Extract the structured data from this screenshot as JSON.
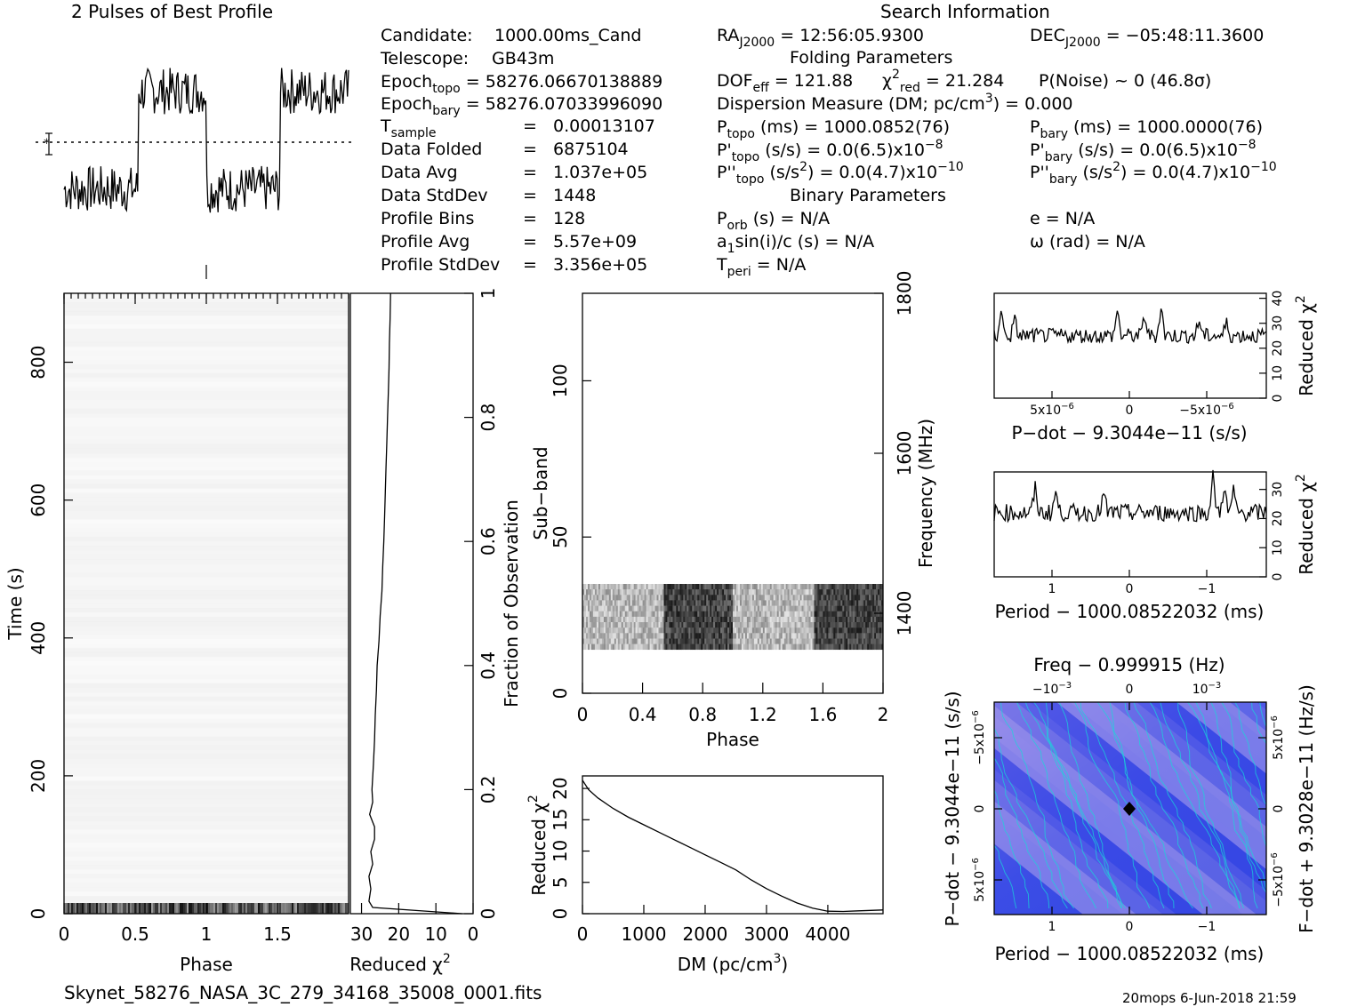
{
  "footer": {
    "filename": "Skynet_58276_NASA_3C_279_34168_35008_0001.fits",
    "stamp": "20mops   6-Jun-2018 21:59"
  },
  "profile": {
    "title": "2 Pulses of Best Profile"
  },
  "search_title": "Search Information",
  "info": {
    "candidate_label": "Candidate:",
    "candidate_value": "1000.00ms_Cand",
    "telescope_label": "Telescope:",
    "telescope_value": "GB43m",
    "epoch_topo": "Epoch",
    "epoch_topo_sub": "topo",
    "epoch_topo_value": " = 58276.06670138889",
    "epoch_bary": "Epoch",
    "epoch_bary_sub": "bary",
    "epoch_bary_value": " = 58276.07033996090",
    "tsample": "T",
    "tsample_sub": "sample",
    "tsample_value": "0.00013107",
    "data_folded_label": "Data Folded",
    "data_folded_value": "6875104",
    "data_avg_label": "Data Avg",
    "data_avg_value": "1.037e+05",
    "data_std_label": "Data StdDev",
    "data_std_value": "1448",
    "prof_bins_label": "Profile Bins",
    "prof_bins_value": "128",
    "prof_avg_label": "Profile Avg",
    "prof_avg_value": "5.57e+09",
    "prof_std_label": "Profile StdDev",
    "prof_std_value": "3.356e+05",
    "eq": "="
  },
  "search": {
    "ra": "RA",
    "ra_sub": "J2000",
    "ra_value": " = 12:56:05.9300",
    "dec": "DEC",
    "dec_sub": "J2000",
    "dec_value": " = −05:48:11.3600",
    "folding_title": "Folding Parameters",
    "dof": "DOF",
    "dof_sub": "eff",
    "dof_value": " = 121.88",
    "chi": "χ",
    "chi_sup": "2",
    "chi_sub": "red",
    "chi_value": " = 21.284",
    "pnoise": "P(Noise) ~ 0    (46.8σ)",
    "dm_line": "Dispersion Measure (DM; pc/cm",
    "dm_sup": "3",
    "dm_value": ") = 0.000",
    "ptopo": "P",
    "ptopo_sub": "topo",
    "ptopo_value": " (ms) =  1000.0852(76)",
    "pbary": "P",
    "pbary_sub": "bary",
    "pbary_value": " (ms) =  1000.0000(76)",
    "pdtopo": "P'",
    "pdtopo_sub": "topo",
    "pdtopo_value": " (s/s) = 0.0(6.5)x10",
    "pdtopo_exp": "−8",
    "pdbary": "P'",
    "pdbary_sub": "bary",
    "pdbary_value": " (s/s) = 0.0(6.5)x10",
    "pdbary_exp": "−8",
    "pddtopo": "P''",
    "pddtopo_sub": "topo",
    "pddtopo_value": " (s/s",
    "pddtopo_sup": "2",
    "pddtopo_value2": ") = 0.0(4.7)x10",
    "pddtopo_exp": "−10",
    "pddbary": "P''",
    "pddbary_sub": "bary",
    "pddbary_value": " (s/s",
    "pddbary_sup": "2",
    "pddbary_value2": ") = 0.0(4.7)x10",
    "pddbary_exp": "−10",
    "binary_title": "Binary Parameters",
    "porb": "P",
    "porb_sub": "orb",
    "porb_value": " (s) = N/A",
    "e_line": "e = N/A",
    "a1": "a",
    "a1_sub": "1",
    "a1_value": "sin(i)/c (s) = N/A",
    "omega_line": "ω (rad) = N/A",
    "tperi": "T",
    "tperi_sub": "peri",
    "tperi_value": " = N/A"
  },
  "chart_data": [
    {
      "type": "line",
      "name": "pulse_profile",
      "title": "2 Pulses of Best Profile",
      "x_range": [
        0,
        2
      ],
      "on_pulse_phase": [
        [
          0.52,
          1.0
        ],
        [
          1.52,
          2.0
        ]
      ],
      "off_level": 0.28,
      "on_level": 0.74
    },
    {
      "type": "heatmap",
      "name": "time_phase",
      "xlabel": "Phase",
      "ylabel": "Time (s)",
      "xlim": [
        0,
        2
      ],
      "ylim": [
        0,
        900
      ],
      "x_ticks": [
        "0",
        "0.5",
        "1",
        "1.5"
      ],
      "x_tick_values": [
        0,
        0.5,
        1,
        1.5
      ],
      "y_ticks": [
        "0",
        "200",
        "400",
        "600",
        "800"
      ],
      "y_tick_values": [
        0,
        200,
        400,
        600,
        800
      ]
    },
    {
      "type": "line",
      "name": "time_chi2",
      "xlabel": "Reduced χ",
      "xlabel_sup": "2",
      "y2label": "Fraction of Observation",
      "x_ticks": [
        "30",
        "20",
        "10",
        "0"
      ],
      "x_tick_values": [
        30,
        20,
        10,
        0
      ],
      "y2_ticks": [
        "0",
        "0.2",
        "0.4",
        "0.6",
        "0.8",
        "1"
      ],
      "y2_tick_values": [
        0,
        0.2,
        0.4,
        0.6,
        0.8,
        1
      ],
      "fraction": [
        0,
        0.01,
        0.02,
        0.04,
        0.06,
        0.08,
        0.1,
        0.12,
        0.14,
        0.16,
        0.18,
        0.2,
        0.24,
        0.28,
        0.32,
        0.36,
        0.4,
        0.44,
        0.48,
        0.52,
        0.56,
        0.6,
        0.64,
        0.68,
        0.72,
        0.76,
        0.8,
        0.84,
        0.88,
        0.92,
        0.96,
        1.0
      ],
      "chi2": [
        3,
        27,
        28,
        27.5,
        28,
        27,
        27.5,
        26.5,
        26.5,
        27.8,
        27,
        27.2,
        26.8,
        26.5,
        26.3,
        26,
        25.8,
        25.3,
        25,
        24.5,
        24.3,
        24,
        23.8,
        23.6,
        23.4,
        23.2,
        23,
        22.8,
        22.6,
        22.5,
        22.3,
        22.2
      ],
      "xlim": [
        0,
        33
      ]
    },
    {
      "type": "heatmap",
      "name": "subband_phase",
      "xlabel": "Phase",
      "ylabel": "Sub−band",
      "y2label": "Frequency (MHz)",
      "xlim": [
        0,
        2
      ],
      "ylim": [
        0,
        128
      ],
      "x_ticks": [
        "0",
        "0.4",
        "0.8",
        "1.2",
        "1.6",
        "2"
      ],
      "x_tick_values": [
        0,
        0.4,
        0.8,
        1.2,
        1.6,
        2
      ],
      "y_ticks": [
        "0",
        "50",
        "100"
      ],
      "y_tick_values": [
        0,
        50,
        100
      ],
      "y2_ticks": [
        "1400",
        "1600",
        "1800"
      ],
      "active_subbands": [
        14,
        35
      ]
    },
    {
      "type": "line",
      "name": "dm_chi2",
      "xlabel": "DM (pc/cm",
      "xlabel_sup": "3",
      "ylabel": "Reduced χ",
      "ylabel_sup": "2",
      "xlim": [
        0,
        4900
      ],
      "ylim": [
        0,
        22
      ],
      "x_ticks": [
        "0",
        "1000",
        "2000",
        "3000",
        "4000"
      ],
      "x_tick_values": [
        0,
        1000,
        2000,
        3000,
        4000
      ],
      "y_ticks": [
        "0",
        "5",
        "10",
        "15",
        "20"
      ],
      "y_tick_values": [
        0,
        5,
        10,
        15,
        20
      ],
      "x": [
        0,
        100,
        250,
        500,
        750,
        1000,
        1250,
        1500,
        1750,
        2000,
        2250,
        2500,
        2750,
        3000,
        3250,
        3500,
        3750,
        4000,
        4250,
        4500,
        4900
      ],
      "y": [
        21.3,
        19.8,
        18.5,
        16.8,
        15.4,
        14.2,
        13.0,
        11.8,
        10.6,
        9.4,
        8.2,
        7.0,
        5.4,
        4.0,
        2.8,
        1.7,
        0.9,
        0.4,
        0.35,
        0.45,
        0.6
      ]
    },
    {
      "type": "line",
      "name": "pdot_chi2",
      "xlabel": "P−dot − 9.3044e−11 (s/s)",
      "ylabel": "Reduced χ",
      "ylabel_sup": "2",
      "ylim": [
        0,
        42
      ],
      "x_ticks": [
        "5x10",
        "0",
        "−5x10"
      ],
      "x_tick_exp": "−6",
      "y_ticks": [
        "0",
        "10",
        "20",
        "30",
        "40"
      ],
      "y_tick_values": [
        0,
        10,
        20,
        30,
        40
      ]
    },
    {
      "type": "line",
      "name": "period_chi2",
      "xlabel": "Period − 1000.08522032 (ms)",
      "ylabel": "Reduced χ",
      "ylabel_sup": "2",
      "ylim": [
        0,
        36
      ],
      "x_ticks": [
        "1",
        "0",
        "−1"
      ],
      "y_ticks": [
        "0",
        "10",
        "20",
        "30"
      ],
      "y_tick_values": [
        0,
        10,
        20,
        30
      ]
    },
    {
      "type": "heatmap",
      "name": "period_pdot",
      "title": "Freq − 0.999915 (Hz)",
      "xlabel": "Period − 1000.08522032 (ms)",
      "ylabel": "P−dot − 9.3044e−11 (s/s)",
      "y2label": "F−dot + 9.3028e−11 (Hz/s)",
      "x_ticks": [
        "1",
        "0",
        "−1"
      ],
      "top_ticks": [
        "−10",
        "0",
        "10"
      ],
      "top_tick_exp": "−3",
      "left_ticks": [
        "−5x10",
        "0",
        "5x10"
      ],
      "left_tick_exp": "−6",
      "right_ticks": [
        "5x10",
        "0",
        "−5x10"
      ],
      "right_tick_exp": "−6",
      "colors": {
        "low": "#3a48e6",
        "mid": "#8a86e8",
        "high": "#c9b8f0",
        "contour": "#17d9d9",
        "peak": "#000000"
      }
    }
  ]
}
